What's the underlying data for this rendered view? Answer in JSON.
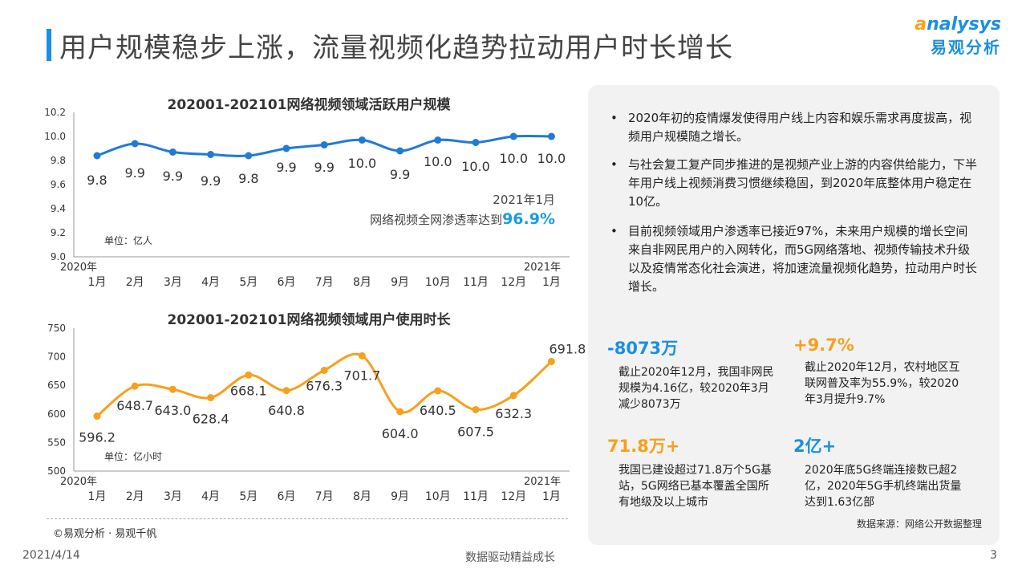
{
  "header": {
    "title": "用户规模稳步上涨，流量视频化趋势拉动用户时长增长",
    "logo_en": "nalysys",
    "logo_en_a": "a",
    "logo_cn": "易观分析"
  },
  "chart_data": [
    {
      "type": "line",
      "title": "202001-202101网络视频领域活跃用户规模",
      "unit": "单位：亿人",
      "categories": [
        "1月",
        "2月",
        "3月",
        "4月",
        "5月",
        "6月",
        "7月",
        "8月",
        "9月",
        "10月",
        "11月",
        "12月",
        "1月"
      ],
      "year_start": "2020年",
      "year_end": "2021年",
      "values": [
        9.84,
        9.94,
        9.87,
        9.85,
        9.84,
        9.9,
        9.93,
        9.97,
        9.88,
        9.97,
        9.95,
        10.0,
        10.0
      ],
      "labels": [
        "9.8",
        "9.9",
        "9.9",
        "9.9",
        "9.8",
        "9.9",
        "9.9",
        "10.0",
        "9.9",
        "10.0",
        "10.0",
        "10.0",
        "10.0"
      ],
      "ylim": [
        9.0,
        10.2
      ],
      "yticks": [
        "9.0",
        "9.2",
        "9.4",
        "9.6",
        "9.8",
        "10.0",
        "10.2"
      ],
      "color": "#1f7ad8",
      "annotation": {
        "line1": "2021年1月",
        "line2": "网络视频全网渗透率达到",
        "highlight": "96.9%",
        "highlight_color": "#1a9be6"
      }
    },
    {
      "type": "line",
      "title": "202001-202101网络视频领域用户使用时长",
      "unit": "单位：亿小时",
      "categories": [
        "1月",
        "2月",
        "3月",
        "4月",
        "5月",
        "6月",
        "7月",
        "8月",
        "9月",
        "10月",
        "11月",
        "12月",
        "1月"
      ],
      "year_start": "2020年",
      "year_end": "2021年",
      "values": [
        596.2,
        648.7,
        643.0,
        628.4,
        668.1,
        640.8,
        676.3,
        701.7,
        604.0,
        640.5,
        607.5,
        632.3,
        691.8
      ],
      "labels": [
        "596.2",
        "648.7",
        "643.0",
        "628.4",
        "668.1",
        "640.8",
        "676.3",
        "701.7",
        "604.0",
        "640.5",
        "607.5",
        "632.3",
        "691.8"
      ],
      "ylim": [
        500,
        750
      ],
      "yticks": [
        "500",
        "550",
        "600",
        "650",
        "700",
        "750"
      ],
      "color": "#f7a01b"
    }
  ],
  "panel": {
    "bullets": [
      "2020年初的疫情爆发使得用户线上内容和娱乐需求再度拔高，视频用户规模随之增长。",
      "与社会复工复产同步推进的是视频产业上游的内容供给能力，下半年用户线上视频消费习惯继续稳固，到2020年底整体用户稳定在10亿。",
      "目前视频领域用户渗透率已接近97%，未来用户规模的增长空间来自非网民用户的入网转化，而5G网络落地、视频传输技术升级以及疫情常态化社会演进，将加速流量视频化趋势，拉动用户时长增长。"
    ],
    "stats": [
      {
        "value": "-8073万",
        "color": "#1a8fe3",
        "desc": "截止2020年12月，我国非网民规模为4.16亿，较2020年3月减少8073万"
      },
      {
        "value": "+9.7%",
        "color": "#f7a01b",
        "desc": "截止2020年12月，农村地区互联网普及率为55.9%，较2020年3月提升9.7%"
      },
      {
        "value": "71.8万+",
        "color": "#f7a01b",
        "desc": "我国已建设超过71.8万个5G基站，5G网络已基本覆盖全国所有地级及以上城市"
      },
      {
        "value": "2亿+",
        "color": "#1a8fe3",
        "desc": "2020年底5G终端连接数已超2亿，2020年5G手机终端出货量达到1.63亿部"
      }
    ],
    "source": "数据来源：网络公开数据整理"
  },
  "footer": {
    "copyright": "©易观分析 · 易观千帆",
    "date": "2021/4/14",
    "slogan": "数据驱动精益成长",
    "page": "3"
  }
}
